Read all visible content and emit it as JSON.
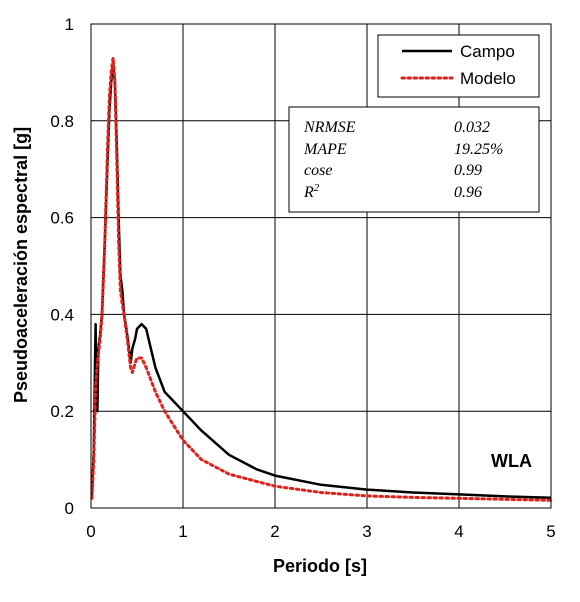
{
  "chart_data": {
    "type": "line",
    "xlabel": "Periodo [s]",
    "ylabel": "Pseudoaceleración espectral [g]",
    "xlim": [
      0,
      5
    ],
    "ylim": [
      0,
      1
    ],
    "xticks": [
      "0",
      "1",
      "2",
      "3",
      "4",
      "5"
    ],
    "yticks": [
      "0",
      "0.2",
      "0.4",
      "0.6",
      "0.8",
      "1"
    ],
    "grid": true,
    "legend_position": "top-right",
    "annotation": "WLA",
    "colors": {
      "Campo": "#000000",
      "Modelo": "#e0201b"
    },
    "series": [
      {
        "name": "Campo",
        "style": "solid",
        "x": [
          0.01,
          0.03,
          0.05,
          0.06,
          0.07,
          0.08,
          0.1,
          0.12,
          0.15,
          0.18,
          0.2,
          0.22,
          0.24,
          0.26,
          0.28,
          0.3,
          0.32,
          0.34,
          0.36,
          0.4,
          0.43,
          0.45,
          0.48,
          0.5,
          0.55,
          0.6,
          0.65,
          0.7,
          0.8,
          0.9,
          1.0,
          1.2,
          1.5,
          1.8,
          2.0,
          2.5,
          3.0,
          3.5,
          4.0,
          4.5,
          5.0
        ],
        "y": [
          0.02,
          0.12,
          0.38,
          0.21,
          0.2,
          0.33,
          0.36,
          0.4,
          0.55,
          0.72,
          0.82,
          0.88,
          0.92,
          0.88,
          0.75,
          0.6,
          0.48,
          0.45,
          0.4,
          0.35,
          0.3,
          0.33,
          0.35,
          0.37,
          0.38,
          0.37,
          0.33,
          0.29,
          0.24,
          0.22,
          0.2,
          0.16,
          0.11,
          0.08,
          0.067,
          0.048,
          0.038,
          0.032,
          0.028,
          0.024,
          0.021
        ]
      },
      {
        "name": "Modelo",
        "style": "dotted",
        "x": [
          0.01,
          0.03,
          0.05,
          0.07,
          0.1,
          0.12,
          0.15,
          0.18,
          0.2,
          0.22,
          0.24,
          0.26,
          0.28,
          0.3,
          0.32,
          0.34,
          0.36,
          0.4,
          0.43,
          0.45,
          0.48,
          0.5,
          0.55,
          0.6,
          0.7,
          0.8,
          0.9,
          1.0,
          1.2,
          1.5,
          1.8,
          2.0,
          2.5,
          3.0,
          3.5,
          4.0,
          4.5,
          5.0
        ],
        "y": [
          0.02,
          0.1,
          0.25,
          0.3,
          0.35,
          0.4,
          0.55,
          0.75,
          0.85,
          0.9,
          0.93,
          0.88,
          0.72,
          0.55,
          0.45,
          0.42,
          0.4,
          0.34,
          0.29,
          0.28,
          0.3,
          0.31,
          0.31,
          0.29,
          0.24,
          0.2,
          0.17,
          0.14,
          0.1,
          0.07,
          0.055,
          0.045,
          0.032,
          0.025,
          0.022,
          0.02,
          0.018,
          0.016
        ]
      }
    ],
    "stats": [
      {
        "label": "NRMSE",
        "value": "0.032"
      },
      {
        "label": "MAPE",
        "value": "19.25%"
      },
      {
        "label": "cose",
        "value": "0.99"
      },
      {
        "label": "R",
        "sup": "2",
        "value": "0.96"
      }
    ]
  }
}
